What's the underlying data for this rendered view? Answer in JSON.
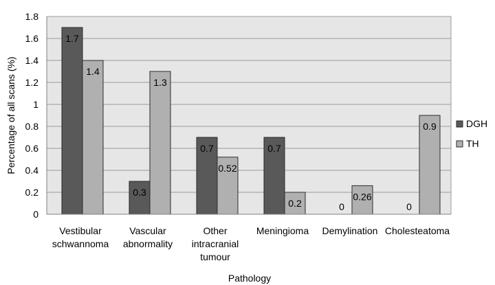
{
  "chart_data": {
    "type": "bar",
    "title": "",
    "xlabel": "Pathology",
    "ylabel": "Percentage of all scans (%)",
    "ylim": [
      0,
      1.8
    ],
    "ytick_step": 0.2,
    "yticks": [
      "0",
      "0.2",
      "0.4",
      "0.6",
      "0.8",
      "1",
      "1.2",
      "1.4",
      "1.6",
      "1.8"
    ],
    "grid": true,
    "legend_position": "right",
    "categories": [
      [
        "Vestibular",
        "schwannoma"
      ],
      [
        "Vascular",
        "abnormality"
      ],
      [
        "Other",
        "intracranial",
        "tumour"
      ],
      [
        "Meningioma"
      ],
      [
        "Demylination"
      ],
      [
        "Cholesteatoma"
      ]
    ],
    "series": [
      {
        "name": "DGH",
        "color": "#595959",
        "values": [
          1.7,
          0.3,
          0.7,
          0.7,
          0,
          0
        ],
        "labels": [
          "1.7",
          "0.3",
          "0.7",
          "0.7",
          "0",
          "0"
        ]
      },
      {
        "name": "TH",
        "color": "#b0b0b0",
        "values": [
          1.4,
          1.3,
          0.52,
          0.2,
          0.26,
          0.9
        ],
        "labels": [
          "1.4",
          "1.3",
          "0.52",
          "0.2",
          "0.26",
          "0.9"
        ]
      }
    ],
    "plot_background": "#e6e6e6",
    "gridline_color": "#9a9a9a"
  }
}
